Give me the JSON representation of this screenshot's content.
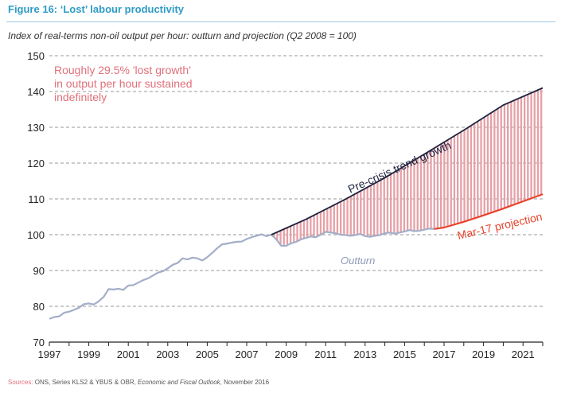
{
  "figure": {
    "title": "Figure 16:  ‘Lost’ labour productivity",
    "subtitle": "Index of real-terms non-oil output per hour: outturn and projection (Q2 2008 = 100)",
    "source_label": "Sources:",
    "source_plain_1": " ONS, Series KLS2 & YBUS & OBR, ",
    "source_italic": "Economic and Fiscal Outlook",
    "source_plain_2": ", November 2016"
  },
  "chart_data": {
    "type": "line",
    "xlim": [
      1997.0,
      2022.0
    ],
    "ylim": [
      70,
      150
    ],
    "yticks": [
      70,
      80,
      90,
      100,
      110,
      120,
      130,
      140,
      150
    ],
    "xticks": [
      1997,
      1999,
      2001,
      2003,
      2005,
      2007,
      2009,
      2011,
      2013,
      2015,
      2017,
      2019,
      2021
    ],
    "grid": true,
    "colors": {
      "outturn": "#a3aec8",
      "trend": "#1f2440",
      "projection": "#e8432c",
      "gap_fill": "#e6a0a6",
      "annotation": "#e0707a",
      "grid": "#999999"
    },
    "annotations": {
      "lost_growth": [
        "Roughly 29.5% 'lost growth'",
        "in output per hour sustained",
        "indefinitely"
      ],
      "trend_label": "Pre-crisis trend growth",
      "projection_label": "Mar-17 projection",
      "outturn_label": "Outturn"
    },
    "series": [
      {
        "name": "Outturn",
        "x": [
          1997.0,
          1997.25,
          1997.5,
          1997.75,
          1998.0,
          1998.25,
          1998.5,
          1998.75,
          1999.0,
          1999.25,
          1999.5,
          1999.75,
          2000.0,
          2000.25,
          2000.5,
          2000.75,
          2001.0,
          2001.25,
          2001.5,
          2001.75,
          2002.0,
          2002.25,
          2002.5,
          2002.75,
          2003.0,
          2003.25,
          2003.5,
          2003.75,
          2004.0,
          2004.25,
          2004.5,
          2004.75,
          2005.0,
          2005.25,
          2005.5,
          2005.75,
          2006.0,
          2006.25,
          2006.5,
          2006.75,
          2007.0,
          2007.25,
          2007.5,
          2007.75,
          2008.0,
          2008.25,
          2008.5,
          2008.75,
          2009.0,
          2009.25,
          2009.5,
          2009.75,
          2010.0,
          2010.25,
          2010.5,
          2010.75,
          2011.0,
          2011.25,
          2011.5,
          2011.75,
          2012.0,
          2012.25,
          2012.5,
          2012.75,
          2013.0,
          2013.25,
          2013.5,
          2013.75,
          2014.0,
          2014.25,
          2014.5,
          2014.75,
          2015.0,
          2015.25,
          2015.5,
          2015.75,
          2016.0,
          2016.25,
          2016.5
        ],
        "values": [
          76.5,
          77.0,
          77.2,
          78.2,
          78.5,
          79.0,
          79.6,
          80.6,
          80.8,
          80.5,
          81.4,
          82.6,
          84.8,
          84.7,
          84.9,
          84.6,
          85.8,
          85.9,
          86.6,
          87.3,
          87.8,
          88.6,
          89.4,
          89.8,
          90.6,
          91.6,
          92.1,
          93.4,
          93.1,
          93.6,
          93.4,
          92.8,
          93.7,
          94.9,
          96.2,
          97.3,
          97.5,
          97.8,
          98.0,
          98.1,
          98.8,
          99.3,
          99.7,
          100.1,
          99.6,
          100.0,
          98.7,
          96.9,
          96.9,
          97.6,
          98.0,
          98.7,
          99.1,
          99.5,
          99.3,
          100.0,
          100.8,
          100.6,
          100.4,
          100.0,
          99.9,
          99.7,
          99.9,
          100.2,
          99.6,
          99.4,
          99.7,
          99.9,
          100.4,
          100.6,
          100.3,
          100.6,
          100.9,
          101.3,
          101.0,
          101.1,
          101.4,
          101.7,
          101.6
        ]
      },
      {
        "name": "Pre-crisis trend growth",
        "x": [
          2008.25,
          2010.0,
          2012.0,
          2014.0,
          2016.0,
          2018.0,
          2020.0,
          2022.0
        ],
        "values": [
          100.0,
          104.3,
          109.9,
          115.9,
          122.5,
          129.2,
          136.2,
          141.0
        ]
      },
      {
        "name": "Mar-17 projection",
        "x": [
          2016.5,
          2017.0,
          2018.0,
          2019.0,
          2020.0,
          2021.0,
          2022.0
        ],
        "values": [
          101.6,
          102.0,
          103.6,
          105.4,
          107.3,
          109.3,
          111.3
        ]
      }
    ]
  }
}
